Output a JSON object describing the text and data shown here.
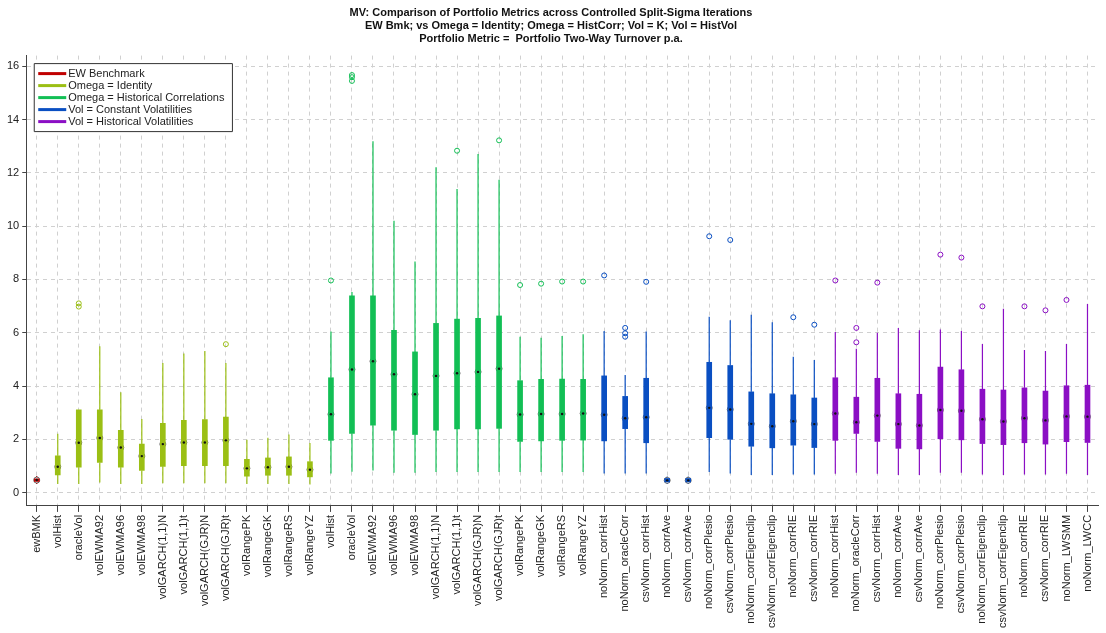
{
  "chart_data": {
    "type": "box",
    "title": "MV: Comparison of Portfolio Metrics across Controlled Split-Sigma Iterations",
    "subtitle": "EW Bmk; vs Omega = Identity; Omega = HistCorr; Vol = K; Vol = HistVol\nPortfolio Metric =  Portfolio Two-Way Turnover p.a.",
    "categories": [
      "ewBMK",
      "volHist",
      "oracleVol",
      "volEWMA92",
      "volEWMA96",
      "volEWMA98",
      "volGARCH(1,1)N",
      "volGARCH(1,1)t",
      "volGARCH(GJR)N",
      "volGARCH(GJR)t",
      "volRangePK",
      "volRangeGK",
      "volRangeRS",
      "volRangeYZ",
      "volHist",
      "oracleVol",
      "volEWMA92",
      "volEWMA96",
      "volEWMA98",
      "volGARCH(1,1)N",
      "volGARCH(1,1)t",
      "volGARCH(GJR)N",
      "volGARCH(GJR)t",
      "volRangePK",
      "volRangeGK",
      "volRangeRS",
      "volRangeYZ",
      "noNorm_corrHist",
      "noNorm_oracleCorr",
      "csvNorm_corrHist",
      "noNorm_corrAve",
      "csvNorm_corrAve",
      "noNorm_corrPlesio",
      "csvNorm_corrPlesio",
      "noNorm_corrEigenclip",
      "csvNorm_corrEigenclip",
      "noNorm_corrRIE",
      "csvNorm_corrRIE",
      "noNorm_corrHist",
      "noNorm_oracleCorr",
      "csvNorm_corrHist",
      "noNorm_corrAve",
      "csvNorm_corrAve",
      "noNorm_corrPlesio",
      "csvNorm_corrPlesio",
      "noNorm_corrEigenclip",
      "csvNorm_corrEigenclip",
      "noNorm_corrRIE",
      "csvNorm_corrRIE",
      "noNorm_LWSMM",
      "noNorm_LWCC"
    ],
    "ylim": [
      -0.5,
      16.4
    ],
    "yticks": [
      0,
      2,
      4,
      6,
      8,
      10,
      12,
      14,
      16
    ],
    "grid": true,
    "legend": "top left",
    "series": [
      {
        "name": "EW Benchmark",
        "color": "#c00000",
        "boxes": [
          {
            "low": 0.32,
            "q1": 0.42,
            "median": 0.47,
            "q3": 0.52,
            "high": 0.62
          },
          null,
          null,
          null,
          null,
          null,
          null,
          null,
          null,
          null,
          null,
          null,
          null,
          null,
          null,
          null,
          null,
          null,
          null,
          null,
          null,
          null,
          null,
          null,
          null,
          null,
          null,
          null,
          null,
          null,
          null,
          null,
          null,
          null,
          null,
          null,
          null,
          null,
          null,
          null,
          null,
          null,
          null,
          null,
          null,
          null,
          null,
          null,
          null,
          null,
          null
        ]
      },
      {
        "name": "Omega = Identity",
        "color": "#9bbf14",
        "boxes": [
          null,
          {
            "low": 0.32,
            "q1": 0.66,
            "median": 0.97,
            "q3": 1.38,
            "high": 2.21
          },
          {
            "low": 0.32,
            "q1": 0.95,
            "median": 1.87,
            "q3": 3.11,
            "high": 3.11,
            "outliers": [
              7.1,
              6.98
            ]
          },
          {
            "low": 0.38,
            "q1": 1.13,
            "median": 2.05,
            "q3": 3.11,
            "high": 5.49
          },
          {
            "low": 0.32,
            "q1": 0.95,
            "median": 1.69,
            "q3": 2.34,
            "high": 3.77
          },
          {
            "low": 0.32,
            "q1": 0.83,
            "median": 1.37,
            "q3": 1.82,
            "high": 2.76
          },
          {
            "low": 0.35,
            "q1": 0.98,
            "median": 1.82,
            "q3": 2.6,
            "high": 4.86
          },
          {
            "low": 0.35,
            "q1": 1.01,
            "median": 1.88,
            "q3": 2.71,
            "high": 5.22
          },
          {
            "low": 0.35,
            "q1": 1.01,
            "median": 1.88,
            "q3": 2.74,
            "high": 5.31
          },
          {
            "low": 0.35,
            "q1": 1.01,
            "median": 1.96,
            "q3": 2.83,
            "high": 4.86,
            "outliers": [
              5.57
            ]
          },
          {
            "low": 0.32,
            "q1": 0.62,
            "median": 0.91,
            "q3": 1.25,
            "high": 1.98
          },
          {
            "low": 0.32,
            "q1": 0.65,
            "median": 0.95,
            "q3": 1.3,
            "high": 2.06
          },
          {
            "low": 0.32,
            "q1": 0.65,
            "median": 0.97,
            "q3": 1.34,
            "high": 2.18
          },
          {
            "low": 0.3,
            "q1": 0.59,
            "median": 0.86,
            "q3": 1.16,
            "high": 1.86
          },
          null,
          null,
          null,
          null,
          null,
          null,
          null,
          null,
          null,
          null,
          null,
          null,
          null,
          null,
          null,
          null,
          null,
          null,
          null,
          null,
          null,
          null,
          null,
          null,
          null,
          null,
          null,
          null,
          null,
          null,
          null,
          null,
          null,
          null,
          null,
          null,
          null
        ]
      },
      {
        "name": "Omega = Historical Correlations",
        "color": "#12bf55",
        "boxes": [
          null,
          null,
          null,
          null,
          null,
          null,
          null,
          null,
          null,
          null,
          null,
          null,
          null,
          null,
          {
            "low": 0.72,
            "q1": 1.96,
            "median": 2.94,
            "q3": 4.31,
            "high": 6.05,
            "outliers": [
              7.96
            ]
          },
          {
            "low": 0.78,
            "q1": 2.22,
            "median": 4.62,
            "q3": 7.38,
            "high": 7.53,
            "outliers": [
              15.59,
              15.67,
              15.45
            ]
          },
          {
            "low": 0.83,
            "q1": 2.53,
            "median": 4.93,
            "q3": 7.38,
            "high": 13.19
          },
          {
            "low": 0.74,
            "q1": 2.34,
            "median": 4.44,
            "q3": 6.09,
            "high": 10.2
          },
          {
            "low": 0.74,
            "q1": 2.18,
            "median": 3.69,
            "q3": 5.28,
            "high": 8.67
          },
          {
            "low": 0.77,
            "q1": 2.34,
            "median": 4.38,
            "q3": 6.35,
            "high": 12.21
          },
          {
            "low": 0.77,
            "q1": 2.39,
            "median": 4.48,
            "q3": 6.51,
            "high": 11.39,
            "outliers": [
              12.83
            ]
          },
          {
            "low": 0.77,
            "q1": 2.39,
            "median": 4.53,
            "q3": 6.54,
            "high": 12.71
          },
          {
            "low": 0.77,
            "q1": 2.41,
            "median": 4.65,
            "q3": 6.63,
            "high": 11.74,
            "outliers": [
              13.22
            ]
          },
          {
            "low": 0.77,
            "q1": 1.92,
            "median": 2.93,
            "q3": 4.2,
            "high": 5.85,
            "outliers": [
              7.79
            ]
          },
          {
            "low": 0.77,
            "q1": 1.94,
            "median": 2.95,
            "q3": 4.25,
            "high": 5.81,
            "outliers": [
              7.84
            ]
          },
          {
            "low": 0.77,
            "q1": 1.96,
            "median": 2.95,
            "q3": 4.26,
            "high": 5.88,
            "outliers": [
              7.92
            ]
          },
          {
            "low": 0.77,
            "q1": 1.97,
            "median": 2.97,
            "q3": 4.25,
            "high": 5.94,
            "outliers": [
              7.92
            ]
          },
          null,
          null,
          null,
          null,
          null,
          null,
          null,
          null,
          null,
          null,
          null,
          null,
          null,
          null,
          null,
          null,
          null,
          null,
          null,
          null,
          null,
          null,
          null,
          null
        ]
      },
      {
        "name": "Vol = Constant Volatilities",
        "color": "#0a4fc2",
        "boxes": [
          null,
          null,
          null,
          null,
          null,
          null,
          null,
          null,
          null,
          null,
          null,
          null,
          null,
          null,
          null,
          null,
          null,
          null,
          null,
          null,
          null,
          null,
          null,
          null,
          null,
          null,
          null,
          {
            "low": 0.72,
            "q1": 1.94,
            "median": 2.92,
            "q3": 4.38,
            "high": 6.06,
            "outliers": [
              8.15
            ]
          },
          {
            "low": 0.72,
            "q1": 2.4,
            "median": 2.79,
            "q3": 3.61,
            "high": 4.41,
            "outliers": [
              6.18,
              5.98,
              5.85
            ]
          },
          {
            "low": 0.72,
            "q1": 1.87,
            "median": 2.83,
            "q3": 4.29,
            "high": 6.05,
            "outliers": [
              7.91
            ]
          },
          {
            "low": 0.33,
            "q1": 0.4,
            "median": 0.46,
            "q3": 0.53,
            "high": 0.6
          },
          {
            "low": 0.33,
            "q1": 0.4,
            "median": 0.46,
            "q3": 0.53,
            "high": 0.6
          },
          {
            "low": 0.77,
            "q1": 2.06,
            "median": 3.18,
            "q3": 4.89,
            "high": 6.6,
            "outliers": [
              9.62
            ]
          },
          {
            "low": 0.72,
            "q1": 2.0,
            "median": 3.12,
            "q3": 4.77,
            "high": 6.47,
            "outliers": [
              9.48
            ]
          },
          {
            "low": 0.66,
            "q1": 1.74,
            "median": 2.58,
            "q3": 3.78,
            "high": 6.67
          },
          {
            "low": 0.66,
            "q1": 1.68,
            "median": 2.49,
            "q3": 3.71,
            "high": 6.39
          },
          {
            "low": 0.68,
            "q1": 1.78,
            "median": 2.68,
            "q3": 3.67,
            "high": 5.1,
            "outliers": [
              6.58
            ]
          },
          {
            "low": 0.68,
            "q1": 1.69,
            "median": 2.57,
            "q3": 3.55,
            "high": 4.98,
            "outliers": [
              6.3
            ]
          },
          null,
          null,
          null,
          null,
          null,
          null,
          null,
          null,
          null,
          null,
          null,
          null,
          null
        ]
      },
      {
        "name": "Vol = Historical Volatilities",
        "color": "#8b0fc4",
        "boxes": [
          null,
          null,
          null,
          null,
          null,
          null,
          null,
          null,
          null,
          null,
          null,
          null,
          null,
          null,
          null,
          null,
          null,
          null,
          null,
          null,
          null,
          null,
          null,
          null,
          null,
          null,
          null,
          null,
          null,
          null,
          null,
          null,
          null,
          null,
          null,
          null,
          null,
          null,
          {
            "low": 0.71,
            "q1": 1.96,
            "median": 2.97,
            "q3": 4.31,
            "high": 6.03,
            "outliers": [
              7.96
            ]
          },
          {
            "low": 0.74,
            "q1": 2.22,
            "median": 2.64,
            "q3": 3.58,
            "high": 5.4,
            "outliers": [
              6.18,
              5.64
            ]
          },
          {
            "low": 0.71,
            "q1": 1.92,
            "median": 2.89,
            "q3": 4.29,
            "high": 6.0,
            "outliers": [
              7.88
            ]
          },
          {
            "low": 0.66,
            "q1": 1.66,
            "median": 2.57,
            "q3": 3.71,
            "high": 6.18
          },
          {
            "low": 0.66,
            "q1": 1.64,
            "median": 2.52,
            "q3": 3.69,
            "high": 6.09
          },
          {
            "low": 0.74,
            "q1": 2.02,
            "median": 3.1,
            "q3": 4.71,
            "high": 6.12,
            "outliers": [
              8.93
            ]
          },
          {
            "low": 0.74,
            "q1": 1.98,
            "median": 3.07,
            "q3": 4.61,
            "high": 6.06,
            "outliers": [
              8.82
            ]
          },
          {
            "low": 0.68,
            "q1": 1.84,
            "median": 2.75,
            "q3": 3.88,
            "high": 5.58,
            "outliers": [
              6.99
            ]
          },
          {
            "low": 0.66,
            "q1": 1.8,
            "median": 2.67,
            "q3": 3.85,
            "high": 6.9
          },
          {
            "low": 0.68,
            "q1": 1.87,
            "median": 2.79,
            "q3": 3.93,
            "high": 5.35,
            "outliers": [
              6.99
            ]
          },
          {
            "low": 0.68,
            "q1": 1.82,
            "median": 2.71,
            "q3": 3.81,
            "high": 5.31,
            "outliers": [
              6.84
            ]
          },
          {
            "low": 0.71,
            "q1": 1.91,
            "median": 2.86,
            "q3": 4.01,
            "high": 5.58,
            "outliers": [
              7.23
            ]
          },
          {
            "low": 0.66,
            "q1": 1.88,
            "median": 2.85,
            "q3": 4.03,
            "high": 7.08
          }
        ]
      }
    ]
  }
}
